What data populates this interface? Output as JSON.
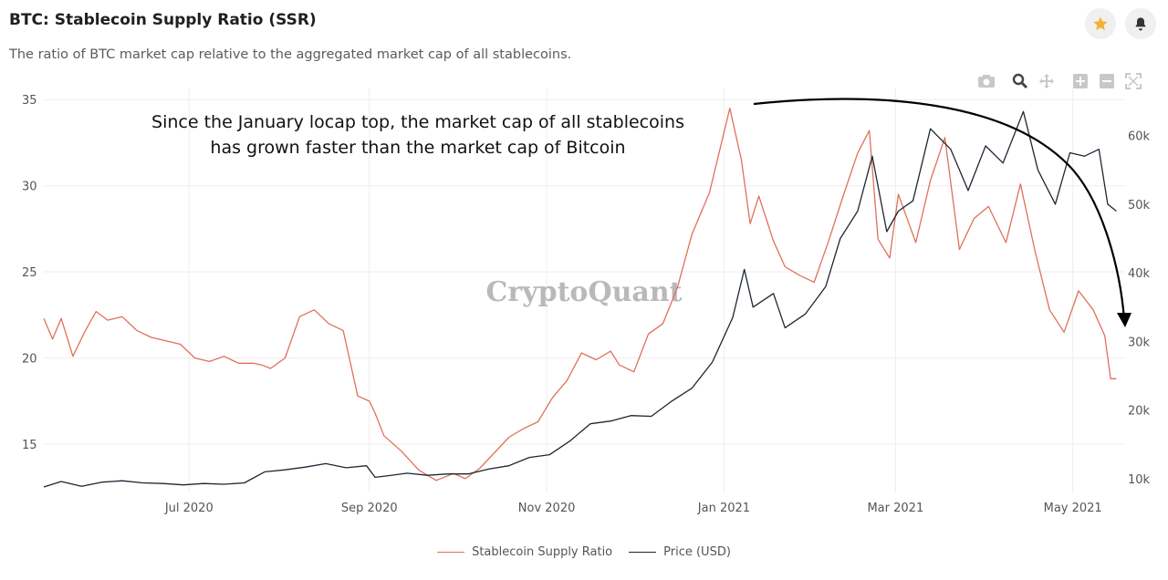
{
  "header": {
    "title": "BTC: Stablecoin Supply Ratio (SSR)",
    "subtitle": "The ratio of BTC market cap relative to the aggregated market cap of all stablecoins."
  },
  "icons": {
    "favorite": "star-icon",
    "notify": "bell-icon",
    "toolbar": [
      "camera-icon",
      "zoom-icon",
      "pan-icon",
      "zoom-in-icon",
      "zoom-out-icon",
      "autoscale-icon"
    ]
  },
  "colors": {
    "ssr": "#e0705a",
    "price": "#1e2633",
    "star": "#f2b234",
    "grid": "#eeeeee"
  },
  "annotation": {
    "line1": "Since the January locap top, the market cap of all stablecoins",
    "line2": "has grown faster than the market cap of Bitcoin"
  },
  "watermark": "CryptoQuant",
  "legend": [
    {
      "name": "Stablecoin Supply Ratio"
    },
    {
      "name": "Price (USD)"
    }
  ],
  "chart_data": {
    "type": "line",
    "x_range": [
      "2020-05-12",
      "2021-05-19"
    ],
    "x_ticks": [
      {
        "date": "2020-07-01",
        "label": "Jul 2020"
      },
      {
        "date": "2020-09-01",
        "label": "Sep 2020"
      },
      {
        "date": "2020-11-01",
        "label": "Nov 2020"
      },
      {
        "date": "2021-01-01",
        "label": "Jan 2021"
      },
      {
        "date": "2021-03-01",
        "label": "Mar 2021"
      },
      {
        "date": "2021-05-01",
        "label": "May 2021"
      }
    ],
    "y_left": {
      "ticks": [
        15,
        20,
        25,
        30,
        35
      ],
      "range": [
        12.2,
        35.7
      ]
    },
    "y_right": {
      "ticks": [
        10000,
        20000,
        30000,
        40000,
        50000,
        60000
      ],
      "tick_labels": [
        "10k",
        "20k",
        "30k",
        "40k",
        "50k",
        "60k"
      ],
      "range": [
        8000,
        67000
      ]
    },
    "grid": true,
    "legend_position": "bottom-center",
    "series": [
      {
        "name": "Stablecoin Supply Ratio",
        "axis": "left",
        "x": [
          "2020-05-12",
          "2020-05-15",
          "2020-05-18",
          "2020-05-22",
          "2020-05-26",
          "2020-05-30",
          "2020-06-03",
          "2020-06-08",
          "2020-06-13",
          "2020-06-18",
          "2020-06-23",
          "2020-06-28",
          "2020-07-03",
          "2020-07-08",
          "2020-07-13",
          "2020-07-18",
          "2020-07-23",
          "2020-07-26",
          "2020-07-29",
          "2020-08-03",
          "2020-08-08",
          "2020-08-13",
          "2020-08-18",
          "2020-08-23",
          "2020-08-28",
          "2020-09-01",
          "2020-09-03",
          "2020-09-06",
          "2020-09-12",
          "2020-09-18",
          "2020-09-24",
          "2020-09-30",
          "2020-10-04",
          "2020-10-09",
          "2020-10-14",
          "2020-10-19",
          "2020-10-24",
          "2020-10-29",
          "2020-11-03",
          "2020-11-08",
          "2020-11-13",
          "2020-11-18",
          "2020-11-23",
          "2020-11-26",
          "2020-12-01",
          "2020-12-06",
          "2020-12-11",
          "2020-12-16",
          "2020-12-21",
          "2020-12-27",
          "2021-01-03",
          "2021-01-07",
          "2021-01-10",
          "2021-01-13",
          "2021-01-18",
          "2021-01-22",
          "2021-01-27",
          "2021-02-01",
          "2021-02-06",
          "2021-02-11",
          "2021-02-16",
          "2021-02-20",
          "2021-02-23",
          "2021-02-27",
          "2021-03-02",
          "2021-03-08",
          "2021-03-13",
          "2021-03-18",
          "2021-03-23",
          "2021-03-28",
          "2021-04-02",
          "2021-04-08",
          "2021-04-13",
          "2021-04-18",
          "2021-04-23",
          "2021-04-28",
          "2021-05-03",
          "2021-05-08",
          "2021-05-12",
          "2021-05-14",
          "2021-05-16"
        ],
        "values": [
          22.3,
          21.1,
          22.3,
          20.1,
          21.5,
          22.7,
          22.2,
          22.4,
          21.6,
          21.2,
          21.0,
          20.8,
          20.0,
          19.8,
          20.1,
          19.7,
          19.7,
          19.6,
          19.4,
          20.0,
          22.4,
          22.8,
          22.0,
          21.6,
          17.8,
          17.5,
          16.8,
          15.5,
          14.6,
          13.5,
          12.9,
          13.3,
          13.0,
          13.6,
          14.5,
          15.4,
          15.9,
          16.3,
          17.7,
          18.7,
          20.3,
          19.9,
          20.4,
          19.6,
          19.2,
          21.4,
          22.0,
          24.1,
          27.2,
          29.6,
          34.5,
          31.5,
          27.8,
          29.4,
          26.8,
          25.3,
          24.8,
          24.4,
          26.8,
          29.4,
          31.9,
          33.2,
          26.9,
          25.8,
          29.5,
          26.7,
          30.3,
          32.8,
          26.3,
          28.1,
          28.8,
          26.7,
          30.1,
          26.2,
          22.8,
          21.5,
          23.9,
          22.8,
          21.3,
          18.8,
          18.8
        ]
      },
      {
        "name": "Price (USD)",
        "axis": "right",
        "x": [
          "2020-05-12",
          "2020-05-18",
          "2020-05-25",
          "2020-06-01",
          "2020-06-08",
          "2020-06-15",
          "2020-06-22",
          "2020-06-29",
          "2020-07-06",
          "2020-07-13",
          "2020-07-20",
          "2020-07-27",
          "2020-08-03",
          "2020-08-10",
          "2020-08-17",
          "2020-08-24",
          "2020-08-31",
          "2020-09-03",
          "2020-09-07",
          "2020-09-14",
          "2020-09-21",
          "2020-09-28",
          "2020-10-05",
          "2020-10-12",
          "2020-10-19",
          "2020-10-26",
          "2020-11-02",
          "2020-11-09",
          "2020-11-16",
          "2020-11-23",
          "2020-11-30",
          "2020-12-07",
          "2020-12-14",
          "2020-12-21",
          "2020-12-28",
          "2021-01-04",
          "2021-01-08",
          "2021-01-11",
          "2021-01-18",
          "2021-01-22",
          "2021-01-29",
          "2021-02-05",
          "2021-02-10",
          "2021-02-16",
          "2021-02-21",
          "2021-02-26",
          "2021-03-02",
          "2021-03-07",
          "2021-03-13",
          "2021-03-20",
          "2021-03-26",
          "2021-04-01",
          "2021-04-07",
          "2021-04-14",
          "2021-04-19",
          "2021-04-25",
          "2021-04-30",
          "2021-05-05",
          "2021-05-10",
          "2021-05-13",
          "2021-05-16"
        ],
        "values": [
          8800,
          9600,
          8900,
          9500,
          9700,
          9400,
          9300,
          9100,
          9300,
          9200,
          9400,
          11000,
          11300,
          11700,
          12200,
          11600,
          11900,
          10200,
          10400,
          10800,
          10500,
          10700,
          10700,
          11400,
          11900,
          13100,
          13500,
          15500,
          18000,
          18400,
          19200,
          19100,
          21300,
          23200,
          27000,
          33500,
          40500,
          35000,
          37000,
          32000,
          34000,
          38000,
          45000,
          49000,
          57000,
          46000,
          49000,
          50500,
          61000,
          58000,
          52000,
          58500,
          56000,
          63500,
          55000,
          50000,
          57500,
          57000,
          58000,
          50000,
          49000
        ]
      }
    ]
  }
}
